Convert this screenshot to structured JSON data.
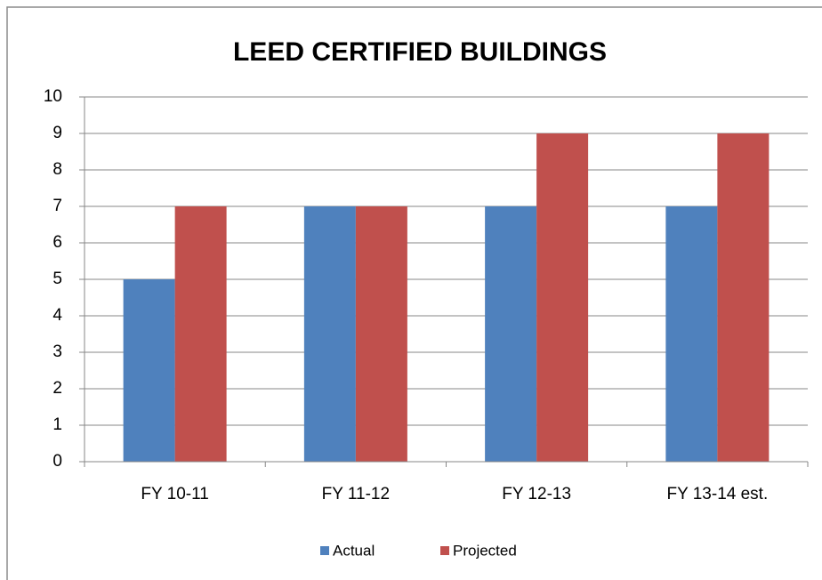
{
  "chart_data": {
    "type": "bar",
    "title": "LEED CERTIFIED BUILDINGS",
    "categories": [
      "FY 10-11",
      "FY 11-12",
      "FY 12-13",
      "FY 13-14 est."
    ],
    "series": [
      {
        "name": "Actual",
        "color": "#4f81bd",
        "values": [
          5,
          7,
          7,
          7
        ]
      },
      {
        "name": "Projected",
        "color": "#c0504d",
        "values": [
          7,
          7,
          9,
          9
        ]
      }
    ],
    "ylim": [
      0,
      10
    ],
    "yticks": [
      0,
      1,
      2,
      3,
      4,
      5,
      6,
      7,
      8,
      9,
      10
    ],
    "grid": true,
    "legend": "bottom"
  }
}
